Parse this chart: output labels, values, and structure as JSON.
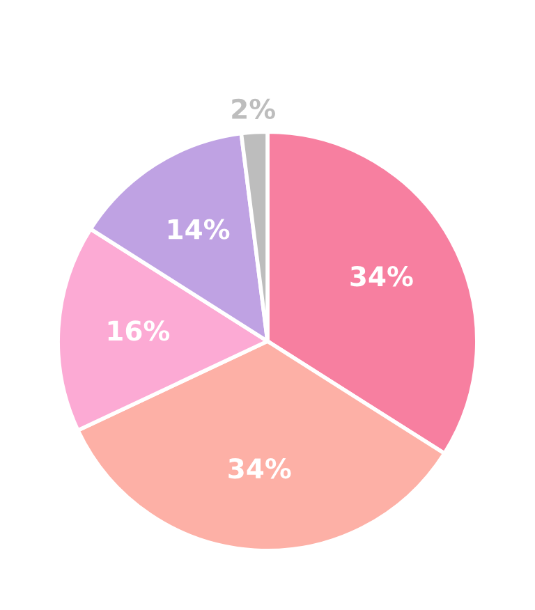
{
  "chart_data": {
    "type": "pie",
    "categories": [
      null,
      null,
      null,
      null,
      null
    ],
    "values": [
      34,
      34,
      16,
      14,
      2
    ],
    "colors": [
      "#f77fa0",
      "#fdb0a6",
      "#fcaad4",
      "#bfa2e3",
      "#bdbdbd"
    ],
    "value_labels": [
      "34%",
      "34%",
      "16%",
      "14%",
      "2%"
    ]
  }
}
